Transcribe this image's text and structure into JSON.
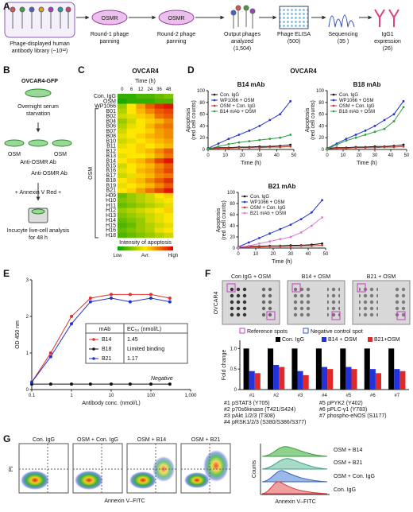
{
  "panel_labels": [
    "A",
    "B",
    "C",
    "D",
    "E",
    "F",
    "G"
  ],
  "panel_a": {
    "steps": [
      {
        "lines": [
          "Phage-displayed human",
          "antibody library (~10¹²)"
        ]
      },
      {
        "target": "OSMR",
        "lines": [
          "Round-1 phage",
          "panning"
        ]
      },
      {
        "target": "OSMR",
        "lines": [
          "Round-2 phage",
          "panning"
        ]
      },
      {
        "lines": [
          "Output phages",
          "analyzed",
          "(1,504)"
        ]
      },
      {
        "lines": [
          "Phage ELISA",
          "(500)"
        ]
      },
      {
        "lines": [
          "Sequencing",
          "(35 )"
        ]
      },
      {
        "lines": [
          "IgG1",
          "expression",
          "(26)"
        ]
      }
    ]
  },
  "panel_b": {
    "cell_line": "OVCAR4-GFP",
    "step1": [
      "Overnight serum",
      "starvation"
    ],
    "treatments": [
      "OSM",
      "Anti-OSMR Ab",
      "OSM",
      "Anti-OSMR Ab"
    ],
    "stain": "+ Annexin V Red +",
    "readout": [
      "Incucyte live-cell analysis",
      "for 48 h"
    ]
  },
  "panel_d": {
    "title": "OVCAR4"
  },
  "panel_f": {
    "blots": [
      "Con IgG + OSM",
      "B14 + OSM",
      "B21 + OSM"
    ],
    "cell_line": "OVCAR4",
    "legend": [
      "Reference spots",
      "Negative control spot"
    ],
    "targets": [
      {
        "num": "#1",
        "text": "pSTAT3 (Y705)"
      },
      {
        "num": "#2",
        "text": "p70s6kinase (T421/S424)"
      },
      {
        "num": "#3",
        "text": "pAkt 1/2/3 (T308)"
      },
      {
        "num": "#4",
        "text": "pRSK1/2/3 (S380/S386/S377)"
      },
      {
        "num": "#5",
        "text": "pPYK2 (Y402)"
      },
      {
        "num": "#6",
        "text": "pPLC-γ1 (Y783)"
      },
      {
        "num": "#7",
        "text": "phospho-eNOS (S1177)"
      }
    ]
  },
  "panel_g": {
    "plots": [
      "Con. IgG",
      "OSM + Con. IgG",
      "OSM + B14",
      "OSM + B21"
    ],
    "xlabel": "Annexin V–FITC",
    "ylabel": "PI",
    "histogram": {
      "labels": [
        "OSM + B14",
        "OSM + B21",
        "OSM + Con. IgG",
        "Con. IgG"
      ],
      "ylabel": "Counts",
      "xlabel": "Annexin V–FITC"
    }
  },
  "chart_data": [
    {
      "type": "heatmap",
      "title": "OVCAR4",
      "xlabel": "Time (h)",
      "categories": [
        0,
        6,
        12,
        24,
        36,
        48
      ],
      "rows": [
        "Con. IgG",
        "OSM",
        "WP1066",
        "B01",
        "B02",
        "B04",
        "B06",
        "B07",
        "B08",
        "B10",
        "B11",
        "B12",
        "B13",
        "B14",
        "B15",
        "B16",
        "B17",
        "B18",
        "B19",
        "B21",
        "H09",
        "H10",
        "H11",
        "H12",
        "H13",
        "H14",
        "H15",
        "H16",
        "H18"
      ],
      "values": [
        [
          0.1,
          0.1,
          0.15,
          0.15,
          0.2,
          0.25
        ],
        [
          0.05,
          0.1,
          0.1,
          0.1,
          0.15,
          0.15
        ],
        [
          0.3,
          0.5,
          0.65,
          0.8,
          0.9,
          0.95
        ],
        [
          0.35,
          0.5,
          0.6,
          0.7,
          0.8,
          0.85
        ],
        [
          0.4,
          0.45,
          0.55,
          0.6,
          0.75,
          0.8
        ],
        [
          0.3,
          0.4,
          0.5,
          0.55,
          0.6,
          0.7
        ],
        [
          0.35,
          0.45,
          0.5,
          0.6,
          0.7,
          0.75
        ],
        [
          0.4,
          0.5,
          0.5,
          0.55,
          0.65,
          0.7
        ],
        [
          0.45,
          0.5,
          0.55,
          0.6,
          0.65,
          0.7
        ],
        [
          0.4,
          0.45,
          0.5,
          0.55,
          0.6,
          0.65
        ],
        [
          0.45,
          0.5,
          0.55,
          0.5,
          0.55,
          0.6
        ],
        [
          0.5,
          0.5,
          0.55,
          0.6,
          0.7,
          0.8
        ],
        [
          0.45,
          0.5,
          0.5,
          0.55,
          0.65,
          0.75
        ],
        [
          0.5,
          0.55,
          0.6,
          0.7,
          0.85,
          0.95
        ],
        [
          0.4,
          0.5,
          0.55,
          0.6,
          0.7,
          0.8
        ],
        [
          0.45,
          0.5,
          0.6,
          0.65,
          0.75,
          0.85
        ],
        [
          0.4,
          0.45,
          0.55,
          0.6,
          0.7,
          0.75
        ],
        [
          0.5,
          0.55,
          0.6,
          0.7,
          0.8,
          0.9
        ],
        [
          0.45,
          0.5,
          0.55,
          0.6,
          0.7,
          0.8
        ],
        [
          0.5,
          0.55,
          0.65,
          0.75,
          0.85,
          0.95
        ],
        [
          0.2,
          0.3,
          0.35,
          0.4,
          0.5,
          0.55
        ],
        [
          0.25,
          0.3,
          0.35,
          0.4,
          0.45,
          0.5
        ],
        [
          0.2,
          0.25,
          0.3,
          0.35,
          0.4,
          0.45
        ],
        [
          0.3,
          0.35,
          0.4,
          0.45,
          0.5,
          0.55
        ],
        [
          0.25,
          0.3,
          0.35,
          0.4,
          0.45,
          0.5
        ],
        [
          0.2,
          0.25,
          0.3,
          0.4,
          0.45,
          0.5
        ],
        [
          0.15,
          0.2,
          0.3,
          0.35,
          0.4,
          0.45
        ],
        [
          0.2,
          0.25,
          0.3,
          0.35,
          0.45,
          0.5
        ],
        [
          0.15,
          0.2,
          0.25,
          0.3,
          0.35,
          0.4
        ]
      ],
      "group_label": "OSM",
      "colorbar_label": "Intensity of apoptosis",
      "colorbar_ticks": [
        "Low",
        "Avr.",
        "High"
      ]
    },
    {
      "type": "line",
      "title": "B14 mAb",
      "xlabel": "Time (h)",
      "ylabel": [
        "Apoptosis",
        "(red cell counts)"
      ],
      "x": [
        0,
        6,
        12,
        18,
        24,
        30,
        36,
        42,
        48
      ],
      "xlim": [
        0,
        50
      ],
      "xticks": [
        0,
        10,
        20,
        30,
        40,
        50
      ],
      "ylim": [
        0,
        100
      ],
      "yticks": [
        0,
        20,
        40,
        60,
        80,
        100
      ],
      "legend": "upper left",
      "series": [
        {
          "name": "Con. IgG",
          "color": "#111111",
          "values": [
            2,
            3,
            3,
            4,
            4,
            5,
            5,
            6,
            8
          ]
        },
        {
          "name": "WP1066 + OSM",
          "color": "#2233cc",
          "values": [
            2,
            10,
            18,
            25,
            32,
            40,
            50,
            60,
            82
          ]
        },
        {
          "name": "OSM + Con. IgG",
          "color": "#c0392b",
          "values": [
            1,
            2,
            2,
            3,
            3,
            3,
            4,
            4,
            5
          ]
        },
        {
          "name": "B14 mAb + OSM",
          "color": "#2e9e3e",
          "values": [
            1,
            5,
            9,
            12,
            14,
            16,
            18,
            20,
            25
          ]
        }
      ]
    },
    {
      "type": "line",
      "title": "B18 mAb",
      "xlabel": "Time (h)",
      "ylabel": [
        "Apoptosis",
        "(red cell counts)"
      ],
      "x": [
        0,
        6,
        12,
        18,
        24,
        30,
        36,
        42,
        48
      ],
      "xlim": [
        0,
        50
      ],
      "xticks": [
        0,
        10,
        20,
        30,
        40,
        50
      ],
      "ylim": [
        0,
        100
      ],
      "yticks": [
        0,
        20,
        40,
        60,
        80,
        100
      ],
      "legend": "upper left",
      "series": [
        {
          "name": "Con. IgG",
          "color": "#111111",
          "values": [
            2,
            3,
            3,
            4,
            4,
            5,
            5,
            6,
            8
          ]
        },
        {
          "name": "WP1066 + OSM",
          "color": "#2233cc",
          "values": [
            2,
            10,
            18,
            25,
            32,
            40,
            50,
            60,
            82
          ]
        },
        {
          "name": "OSM + Con. IgG",
          "color": "#c0392b",
          "values": [
            1,
            2,
            2,
            3,
            3,
            3,
            4,
            4,
            5
          ]
        },
        {
          "name": "B18 mAb + OSM",
          "color": "#2e9e3e",
          "values": [
            1,
            8,
            15,
            20,
            25,
            30,
            35,
            48,
            72
          ]
        }
      ]
    },
    {
      "type": "line",
      "title": "B21 mAb",
      "xlabel": "Time (h)",
      "ylabel": [
        "Apoptosis",
        "(red cell counts)"
      ],
      "x": [
        0,
        6,
        12,
        18,
        24,
        30,
        36,
        42,
        48
      ],
      "xlim": [
        0,
        50
      ],
      "xticks": [
        0,
        10,
        20,
        30,
        40,
        50
      ],
      "ylim": [
        0,
        100
      ],
      "yticks": [
        0,
        20,
        40,
        60,
        80,
        100
      ],
      "legend": "upper left",
      "series": [
        {
          "name": "Con. IgG",
          "color": "#111111",
          "values": [
            2,
            3,
            3,
            4,
            4,
            5,
            5,
            6,
            8
          ]
        },
        {
          "name": "WP1066 + OSM",
          "color": "#2233cc",
          "values": [
            2,
            10,
            18,
            26,
            34,
            42,
            52,
            64,
            86
          ]
        },
        {
          "name": "OSM + Con. IgG",
          "color": "#c0392b",
          "values": [
            1,
            2,
            2,
            3,
            3,
            3,
            4,
            4,
            5
          ]
        },
        {
          "name": "B21 mAb + OSM",
          "color": "#e07ad0",
          "values": [
            1,
            4,
            8,
            12,
            16,
            20,
            28,
            40,
            55
          ]
        }
      ]
    },
    {
      "type": "scatter",
      "xlabel": "Antibody conc. (nmol/L)",
      "ylabel": "OD 450 nm",
      "log_x": true,
      "x": [
        0.1,
        0.3,
        1,
        3,
        10,
        30,
        100,
        300
      ],
      "xlim": [
        0.1,
        1000
      ],
      "xticks": [
        0.1,
        1,
        10,
        100,
        {
          "value": 1000,
          "label": "1,000"
        }
      ],
      "ylim": [
        0,
        3
      ],
      "yticks": [
        0,
        1,
        2,
        3
      ],
      "series": [
        {
          "name": "B14",
          "color": "#e03030",
          "values": [
            0.2,
            1.0,
            2.0,
            2.5,
            2.6,
            2.6,
            2.6,
            2.5
          ]
        },
        {
          "name": "B18",
          "color": "#111111",
          "values": [
            0.15,
            0.15,
            0.15,
            0.15,
            0.15,
            0.15,
            0.15,
            0.15
          ]
        },
        {
          "name": "B21",
          "color": "#2233cc",
          "values": [
            0.2,
            0.9,
            1.8,
            2.4,
            2.5,
            2.4,
            2.5,
            2.4
          ]
        }
      ],
      "table_header": [
        "mAb",
        "EC₅₀ (nmol/L)"
      ],
      "ec50": [
        1.45,
        "Limited binding",
        1.17
      ],
      "annotation": "Negative"
    },
    {
      "type": "bar",
      "ylabel": "Fold change",
      "categories": [
        "#1",
        "#2",
        "#3",
        "#4",
        "#5",
        "#6",
        "#7"
      ],
      "ylim": [
        0,
        1.2
      ],
      "yticks": [
        0,
        0.5,
        {
          "value": 1,
          "label": "1.0"
        }
      ],
      "legend": "upper right",
      "series": [
        {
          "name": "Con. IgG",
          "color": "#000000",
          "values": [
            1,
            1,
            1,
            1,
            1,
            1,
            1
          ]
        },
        {
          "name": "B14 + OSM",
          "color": "#2233dd",
          "values": [
            0.45,
            0.6,
            0.45,
            0.55,
            0.55,
            0.5,
            0.5
          ]
        },
        {
          "name": "B21+OSM",
          "color": "#e02a2a",
          "values": [
            0.4,
            0.55,
            0.35,
            0.5,
            0.5,
            0.4,
            0.45
          ]
        }
      ]
    }
  ]
}
